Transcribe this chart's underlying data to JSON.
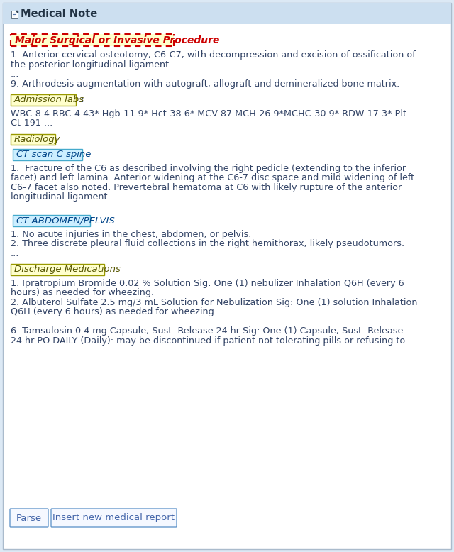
{
  "title": "Medical Note",
  "bg_color": "#dce9f5",
  "header_bg": "#ccdff0",
  "content_bg": "#ffffff",
  "sections": [
    {
      "type": "header1_dashed",
      "label": "Major Surgical or Invasive Procedure",
      "label_color": "#cc0000",
      "label_bg": "#ffffcc",
      "border_color": "#cc0000"
    },
    {
      "type": "body_text",
      "lines": [
        "1. Anterior cervical osteotomy, C6-C7, with decompression and excision of ossification of",
        "the posterior longitudinal ligament.",
        "...",
        "9. Arthrodesis augmentation with autograft, allograft and demineralized bone matrix."
      ]
    },
    {
      "type": "header2_solid",
      "label": "Admission labs",
      "label_color": "#555500",
      "label_bg": "#ffffcc",
      "border_color": "#999900",
      "suffix": " :"
    },
    {
      "type": "body_text",
      "lines": [
        "WBC-8.4 RBC-4.43* Hgb-11.9* Hct-38.6* MCV-87 MCH-26.9*MCHC-30.9* RDW-17.3* Plt",
        "Ct-191 ..."
      ]
    },
    {
      "type": "header2_solid",
      "label": "Radiology",
      "label_color": "#555500",
      "label_bg": "#ffffcc",
      "border_color": "#999900",
      "suffix": ""
    },
    {
      "type": "header3_solid",
      "label": "CT scan C spine",
      "label_color": "#004488",
      "label_bg": "#cceeff",
      "border_color": "#44aacc"
    },
    {
      "type": "body_text",
      "lines": [
        "1.  Fracture of the C6 as described involving the right pedicle (extending to the inferior",
        "facet) and left lamina. Anterior widening at the C6-7 disc space and mild widening of left",
        "C6-7 facet also noted. Prevertebral hematoma at C6 with likely rupture of the anterior",
        "longitudinal ligament.",
        "..."
      ]
    },
    {
      "type": "header3_solid",
      "label": "CT ABDOMEN/PELVIS",
      "label_color": "#004488",
      "label_bg": "#cceeff",
      "border_color": "#44aacc"
    },
    {
      "type": "body_text",
      "lines": [
        "1. No acute injuries in the chest, abdomen, or pelvis.",
        "2. Three discrete pleural fluid collections in the right hemithorax, likely pseudotumors.",
        "..."
      ]
    },
    {
      "type": "header2_solid",
      "label": "Discharge Medications",
      "label_color": "#555500",
      "label_bg": "#ffffcc",
      "border_color": "#999900",
      "suffix": ""
    },
    {
      "type": "body_text",
      "lines": [
        "1. Ipratropium Bromide 0.02 % Solution Sig: One (1) nebulizer Inhalation Q6H (every 6",
        "hours) as needed for wheezing.",
        "2. Albuterol Sulfate 2.5 mg/3 mL Solution for Nebulization Sig: One (1) solution Inhalation",
        "Q6H (every 6 hours) as needed for wheezing.",
        "...",
        "6. Tamsulosin 0.4 mg Capsule, Sust. Release 24 hr Sig: One (1) Capsule, Sust. Release",
        "24 hr PO DAILY (Daily): may be discontinued if patient not tolerating pills or refusing to"
      ]
    }
  ],
  "buttons": [
    "Parse",
    "Insert new medical report"
  ],
  "font_size_body": 9.2,
  "font_size_header": 9.5,
  "text_color": "#334466"
}
